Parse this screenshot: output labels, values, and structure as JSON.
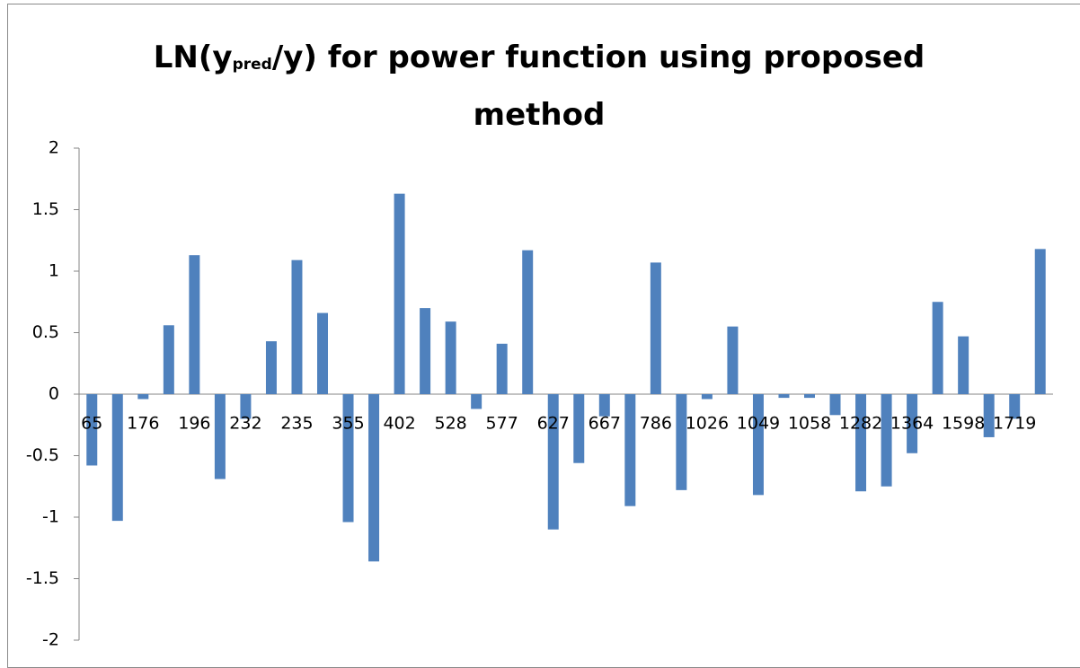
{
  "chart_data": {
    "type": "bar",
    "title": [
      "LN(y",
      "pred",
      "/y) for power function using proposed method"
    ],
    "categories": [
      "65",
      null,
      "176",
      null,
      "196",
      null,
      "232",
      null,
      "235",
      null,
      "355",
      null,
      "402",
      null,
      "528",
      null,
      "577",
      null,
      "627",
      null,
      "667",
      null,
      "786",
      null,
      "1026",
      null,
      "1049",
      null,
      "1058",
      null,
      "1282",
      null,
      "1364",
      null,
      "1598",
      null,
      "1719",
      null
    ],
    "values": [
      -0.58,
      -1.03,
      -0.04,
      0.56,
      1.13,
      -0.69,
      -0.2,
      0.43,
      1.09,
      0.66,
      -1.04,
      -1.36,
      1.63,
      0.7,
      0.59,
      -0.12,
      0.41,
      1.17,
      -1.1,
      -0.56,
      -0.18,
      -0.91,
      1.07,
      -0.78,
      -0.04,
      0.55,
      -0.82,
      -0.03,
      -0.03,
      -0.17,
      -0.79,
      -0.75,
      -0.48,
      0.75,
      0.47,
      -0.35,
      -0.2,
      1.18
    ],
    "color": "#4f81bd",
    "ylim": [
      -2,
      2
    ],
    "yticks": [
      -2,
      -1.5,
      -1,
      -0.5,
      0,
      0.5,
      1,
      1.5,
      2
    ],
    "grid": false
  }
}
